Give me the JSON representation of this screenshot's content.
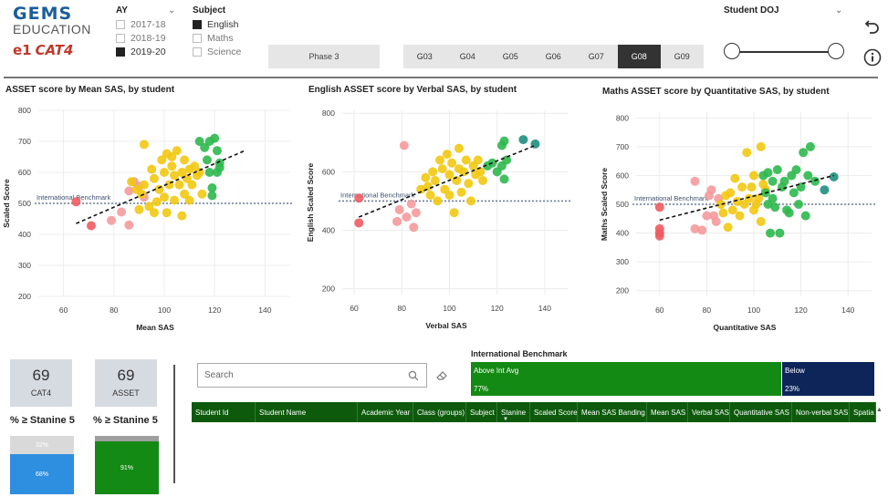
{
  "logo": {
    "brand": "GEMS",
    "sub": "EDUCATION",
    "mark1": "e1",
    "mark2": "CAT4"
  },
  "ay": {
    "title": "AY",
    "items": [
      {
        "label": "2017-18",
        "checked": false
      },
      {
        "label": "2018-19",
        "checked": false
      },
      {
        "label": "2019-20",
        "checked": true
      }
    ]
  },
  "subject": {
    "title": "Subject",
    "items": [
      {
        "label": "English",
        "checked": true
      },
      {
        "label": "Maths",
        "checked": false
      },
      {
        "label": "Science",
        "checked": false
      }
    ]
  },
  "phase": {
    "label": "Phase 3"
  },
  "grades": [
    {
      "label": "G03",
      "active": false
    },
    {
      "label": "G04",
      "active": false
    },
    {
      "label": "G05",
      "active": false
    },
    {
      "label": "G06",
      "active": false
    },
    {
      "label": "G07",
      "active": false
    },
    {
      "label": "G08",
      "active": true
    },
    {
      "label": "G09",
      "active": false
    }
  ],
  "doj": {
    "title": "Student DOJ"
  },
  "colors": {
    "red": "#ef5b62",
    "pink": "#f59a9c",
    "yellow": "#f2c811",
    "green": "#2db84d",
    "teal": "#1f8f80",
    "benchmark": "#6d7f9a",
    "trend": "#111111"
  },
  "charts": [
    {
      "title": "ASSET score by Mean SAS, by student",
      "xlabel": "Mean SAS",
      "ylabel": "Scaled Score",
      "xlim": [
        50,
        150
      ],
      "ylim": [
        200,
        800
      ],
      "xticks": [
        60,
        80,
        100,
        120,
        140
      ],
      "yticks": [
        200,
        300,
        400,
        500,
        600,
        700,
        800
      ],
      "benchmark_label": "International Benchmark",
      "benchmark_value": 500,
      "trend": [
        [
          65,
          435
        ],
        [
          132,
          670
        ]
      ],
      "points": [
        [
          65,
          505,
          "red"
        ],
        [
          71,
          428,
          "red"
        ],
        [
          79,
          445,
          "pink"
        ],
        [
          83,
          472,
          "pink"
        ],
        [
          86,
          430,
          "pink"
        ],
        [
          86,
          540,
          "pink"
        ],
        [
          88,
          570,
          "pink"
        ],
        [
          90,
          555,
          "pink"
        ],
        [
          92,
          520,
          "pink"
        ],
        [
          87,
          570,
          "yellow"
        ],
        [
          89,
          545,
          "yellow"
        ],
        [
          90,
          480,
          "yellow"
        ],
        [
          91,
          530,
          "yellow"
        ],
        [
          92,
          560,
          "yellow"
        ],
        [
          92,
          690,
          "yellow"
        ],
        [
          94,
          490,
          "yellow"
        ],
        [
          95,
          610,
          "yellow"
        ],
        [
          96,
          470,
          "yellow"
        ],
        [
          96,
          580,
          "yellow"
        ],
        [
          97,
          505,
          "yellow"
        ],
        [
          98,
          545,
          "yellow"
        ],
        [
          99,
          640,
          "yellow"
        ],
        [
          100,
          600,
          "yellow"
        ],
        [
          100,
          520,
          "yellow"
        ],
        [
          101,
          660,
          "yellow"
        ],
        [
          101,
          470,
          "yellow"
        ],
        [
          102,
          560,
          "yellow"
        ],
        [
          103,
          620,
          "yellow"
        ],
        [
          103,
          650,
          "yellow"
        ],
        [
          104,
          590,
          "yellow"
        ],
        [
          104,
          510,
          "yellow"
        ],
        [
          105,
          670,
          "yellow"
        ],
        [
          106,
          560,
          "yellow"
        ],
        [
          107,
          600,
          "yellow"
        ],
        [
          107,
          460,
          "yellow"
        ],
        [
          108,
          530,
          "yellow"
        ],
        [
          108,
          640,
          "yellow"
        ],
        [
          109,
          580,
          "yellow"
        ],
        [
          110,
          510,
          "yellow"
        ],
        [
          110,
          610,
          "yellow"
        ],
        [
          111,
          560,
          "yellow"
        ],
        [
          112,
          620,
          "yellow"
        ],
        [
          113,
          590,
          "yellow"
        ],
        [
          114,
          600,
          "yellow"
        ],
        [
          115,
          530,
          "yellow"
        ],
        [
          114,
          700,
          "green"
        ],
        [
          116,
          680,
          "green"
        ],
        [
          117,
          640,
          "green"
        ],
        [
          118,
          700,
          "green"
        ],
        [
          118,
          600,
          "green"
        ],
        [
          119,
          550,
          "green"
        ],
        [
          119,
          525,
          "green"
        ],
        [
          120,
          710,
          "green"
        ],
        [
          121,
          600,
          "green"
        ],
        [
          121,
          670,
          "green"
        ],
        [
          122,
          630,
          "green"
        ],
        [
          122,
          615,
          "green"
        ]
      ]
    },
    {
      "title": "English ASSET score by Verbal SAS, by student",
      "xlabel": "Verbal SAS",
      "ylabel": "English Scaled Score",
      "xlim": [
        55,
        150
      ],
      "ylim": [
        180,
        810
      ],
      "xticks": [
        60,
        80,
        100,
        120,
        140
      ],
      "yticks": [
        200,
        400,
        600,
        800
      ],
      "benchmark_label": "International Benchmark",
      "benchmark_value": 500,
      "trend": [
        [
          62,
          445
        ],
        [
          136,
          690
        ]
      ],
      "points": [
        [
          62,
          510,
          "red"
        ],
        [
          62,
          425,
          "red"
        ],
        [
          78,
          430,
          "pink"
        ],
        [
          79,
          470,
          "pink"
        ],
        [
          81,
          690,
          "pink"
        ],
        [
          82,
          445,
          "pink"
        ],
        [
          84,
          490,
          "pink"
        ],
        [
          85,
          410,
          "pink"
        ],
        [
          86,
          460,
          "pink"
        ],
        [
          88,
          540,
          "yellow"
        ],
        [
          90,
          580,
          "yellow"
        ],
        [
          91,
          550,
          "yellow"
        ],
        [
          92,
          520,
          "yellow"
        ],
        [
          93,
          600,
          "yellow"
        ],
        [
          94,
          570,
          "yellow"
        ],
        [
          95,
          500,
          "yellow"
        ],
        [
          96,
          640,
          "yellow"
        ],
        [
          97,
          610,
          "yellow"
        ],
        [
          98,
          540,
          "yellow"
        ],
        [
          99,
          660,
          "yellow"
        ],
        [
          100,
          590,
          "yellow"
        ],
        [
          100,
          520,
          "yellow"
        ],
        [
          101,
          630,
          "yellow"
        ],
        [
          102,
          460,
          "yellow"
        ],
        [
          103,
          570,
          "yellow"
        ],
        [
          104,
          610,
          "yellow"
        ],
        [
          104,
          680,
          "yellow"
        ],
        [
          105,
          530,
          "yellow"
        ],
        [
          106,
          600,
          "yellow"
        ],
        [
          107,
          640,
          "yellow"
        ],
        [
          108,
          560,
          "yellow"
        ],
        [
          109,
          500,
          "yellow"
        ],
        [
          110,
          620,
          "yellow"
        ],
        [
          111,
          590,
          "yellow"
        ],
        [
          112,
          640,
          "yellow"
        ],
        [
          113,
          600,
          "yellow"
        ],
        [
          114,
          570,
          "yellow"
        ],
        [
          116,
          620,
          "green"
        ],
        [
          118,
          630,
          "green"
        ],
        [
          120,
          600,
          "green"
        ],
        [
          122,
          620,
          "green"
        ],
        [
          122,
          690,
          "green"
        ],
        [
          123,
          575,
          "green"
        ],
        [
          123,
          705,
          "green"
        ],
        [
          124,
          640,
          "green"
        ],
        [
          131,
          710,
          "teal"
        ],
        [
          136,
          695,
          "teal"
        ]
      ]
    },
    {
      "title": "Maths ASSET score by Quantitative SAS, by student",
      "xlabel": "Quantitative SAS",
      "ylabel": "Maths Scaled Score",
      "xlim": [
        50,
        150
      ],
      "ylim": [
        180,
        820
      ],
      "xticks": [
        60,
        80,
        100,
        120,
        140
      ],
      "yticks": [
        200,
        300,
        400,
        500,
        600,
        700,
        800
      ],
      "benchmark_label": "International Benchmark",
      "benchmark_value": 500,
      "trend": [
        [
          60,
          445
        ],
        [
          134,
          600
        ]
      ],
      "points": [
        [
          60,
          490,
          "red"
        ],
        [
          60,
          415,
          "red"
        ],
        [
          60,
          400,
          "red"
        ],
        [
          60,
          390,
          "red"
        ],
        [
          75,
          580,
          "pink"
        ],
        [
          75,
          415,
          "pink"
        ],
        [
          78,
          410,
          "pink"
        ],
        [
          80,
          460,
          "pink"
        ],
        [
          81,
          530,
          "pink"
        ],
        [
          82,
          550,
          "pink"
        ],
        [
          83,
          460,
          "pink"
        ],
        [
          84,
          440,
          "pink"
        ],
        [
          85,
          520,
          "pink"
        ],
        [
          86,
          500,
          "yellow"
        ],
        [
          87,
          470,
          "yellow"
        ],
        [
          88,
          530,
          "yellow"
        ],
        [
          89,
          420,
          "yellow"
        ],
        [
          90,
          540,
          "yellow"
        ],
        [
          91,
          480,
          "yellow"
        ],
        [
          92,
          590,
          "yellow"
        ],
        [
          93,
          510,
          "yellow"
        ],
        [
          94,
          460,
          "yellow"
        ],
        [
          95,
          560,
          "yellow"
        ],
        [
          96,
          500,
          "yellow"
        ],
        [
          97,
          680,
          "yellow"
        ],
        [
          98,
          520,
          "yellow"
        ],
        [
          99,
          560,
          "yellow"
        ],
        [
          100,
          600,
          "yellow"
        ],
        [
          100,
          480,
          "yellow"
        ],
        [
          101,
          500,
          "yellow"
        ],
        [
          102,
          520,
          "yellow"
        ],
        [
          103,
          440,
          "yellow"
        ],
        [
          103,
          700,
          "yellow"
        ],
        [
          104,
          570,
          "yellow"
        ],
        [
          105,
          550,
          "yellow"
        ],
        [
          104,
          600,
          "green"
        ],
        [
          105,
          540,
          "green"
        ],
        [
          106,
          610,
          "green"
        ],
        [
          106,
          500,
          "green"
        ],
        [
          107,
          400,
          "green"
        ],
        [
          108,
          580,
          "green"
        ],
        [
          108,
          520,
          "green"
        ],
        [
          109,
          490,
          "green"
        ],
        [
          110,
          620,
          "green"
        ],
        [
          111,
          400,
          "green"
        ],
        [
          112,
          560,
          "green"
        ],
        [
          113,
          580,
          "green"
        ],
        [
          114,
          480,
          "green"
        ],
        [
          115,
          470,
          "green"
        ],
        [
          116,
          600,
          "green"
        ],
        [
          117,
          540,
          "green"
        ],
        [
          118,
          620,
          "green"
        ],
        [
          119,
          500,
          "green"
        ],
        [
          120,
          560,
          "green"
        ],
        [
          121,
          680,
          "green"
        ],
        [
          122,
          460,
          "green"
        ],
        [
          123,
          600,
          "green"
        ],
        [
          124,
          700,
          "green"
        ],
        [
          126,
          580,
          "green"
        ],
        [
          130,
          550,
          "teal"
        ],
        [
          134,
          595,
          "teal"
        ]
      ]
    }
  ],
  "kpis": [
    {
      "value": "69",
      "label": "CAT4",
      "stanine_title": "% ≥ Stanine 5",
      "top_pct": "32%",
      "bottom_pct": "68%",
      "fill": 0.68,
      "top_color": "#d9d9d9",
      "bottom_color": "#2e8fe0"
    },
    {
      "value": "69",
      "label": "ASSET",
      "stanine_title": "% ≥ Stanine 5",
      "top_pct": "",
      "bottom_pct": "91%",
      "fill": 0.91,
      "top_color": "#9e9e9e",
      "bottom_color": "#138a13"
    }
  ],
  "search": {
    "placeholder": "Search"
  },
  "intl_benchmark": {
    "title": "International Benchmark",
    "above_label": "Above Int Avg",
    "above_pct": "77%",
    "above_value": 0.77,
    "below_label": "Below",
    "below_pct": "23%",
    "below_value": 0.23,
    "above_color": "#138a13",
    "below_color": "#0d2559"
  },
  "table": {
    "columns": [
      "Student Id",
      "Student Name",
      "Academic Year",
      "Class (groups)",
      "Subject",
      "Stanine",
      "Scaled Score",
      "Mean SAS Banding",
      "Mean SAS",
      "Verbal SAS",
      "Quantitative SAS",
      "Non-verbal SAS",
      "Spatia"
    ]
  }
}
